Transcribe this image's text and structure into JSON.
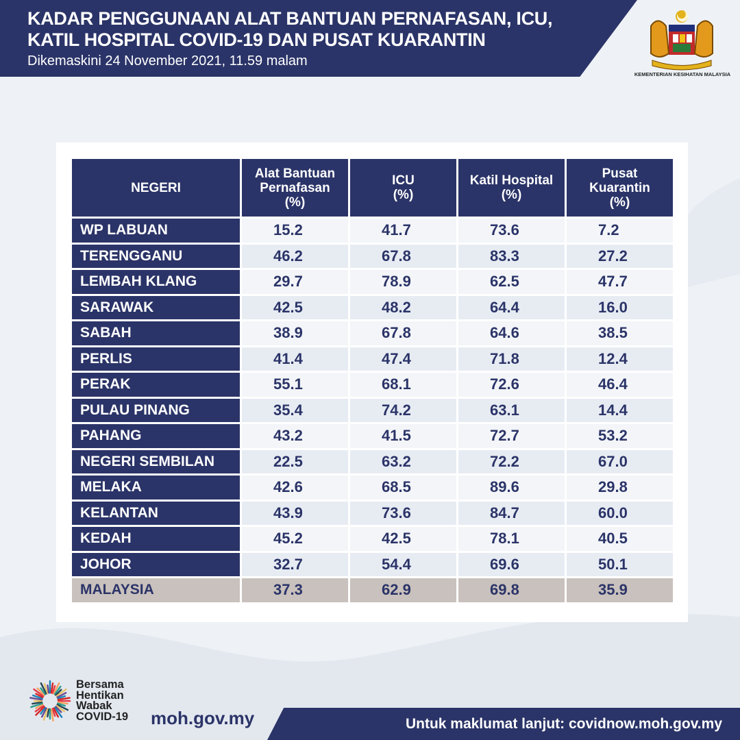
{
  "header": {
    "title_line1": "KADAR PENGGUNAAN ALAT BANTUAN PERNAFASAN, ICU,",
    "title_line2": "KATIL HOSPITAL COVID-19 DAN PUSAT KUARANTIN",
    "subtitle": "Dikemaskini 24 November 2021, 11.59 malam",
    "logo_caption": "KEMENTERIAN KESIHATAN MALAYSIA"
  },
  "colors": {
    "navy": "#2b3468",
    "total_row": "#c9c1bd"
  },
  "table": {
    "headers": [
      "NEGERI",
      "Alat Bantuan\nPernafasan\n(%)",
      "ICU\n(%)",
      "Katil  Hospital\n(%)",
      "Pusat\nKuarantin\n(%)"
    ],
    "rows": [
      [
        "WP LABUAN",
        "15.2",
        "41.7",
        "73.6",
        "7.2"
      ],
      [
        "TERENGGANU",
        "46.2",
        "67.8",
        "83.3",
        "27.2"
      ],
      [
        "LEMBAH KLANG",
        "29.7",
        "78.9",
        "62.5",
        "47.7"
      ],
      [
        "SARAWAK",
        "42.5",
        "48.2",
        "64.4",
        "16.0"
      ],
      [
        "SABAH",
        "38.9",
        "67.8",
        "64.6",
        "38.5"
      ],
      [
        "PERLIS",
        "41.4",
        "47.4",
        "71.8",
        "12.4"
      ],
      [
        "PERAK",
        "55.1",
        "68.1",
        "72.6",
        "46.4"
      ],
      [
        "PULAU PINANG",
        "35.4",
        "74.2",
        "63.1",
        "14.4"
      ],
      [
        "PAHANG",
        "43.2",
        "41.5",
        "72.7",
        "53.2"
      ],
      [
        "NEGERI SEMBILAN",
        "22.5",
        "63.2",
        "72.2",
        "67.0"
      ],
      [
        "MELAKA",
        "42.6",
        "68.5",
        "89.6",
        "29.8"
      ],
      [
        "KELANTAN",
        "43.9",
        "73.6",
        "84.7",
        "60.0"
      ],
      [
        "KEDAH",
        "45.2",
        "42.5",
        "78.1",
        "40.5"
      ],
      [
        "JOHOR",
        "32.7",
        "54.4",
        "69.6",
        "50.1"
      ]
    ],
    "total": [
      "MALAYSIA",
      "37.3",
      "62.9",
      "69.8",
      "35.9"
    ]
  },
  "footer": {
    "campaign_lines": [
      "Bersama",
      "Hentikan",
      "Wabak",
      "COVID-19"
    ],
    "website": "moh.gov.my",
    "info": "Untuk maklumat lanjut: covidnow.moh.gov.my"
  }
}
